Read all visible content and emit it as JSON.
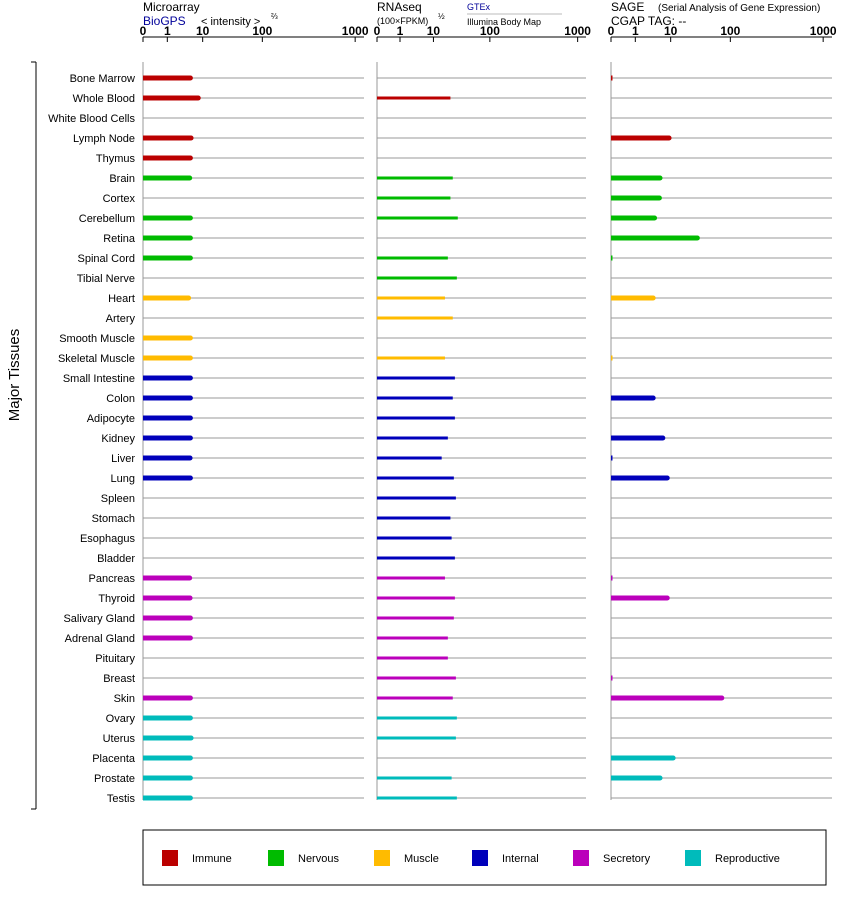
{
  "chart_data": {
    "type": "bar",
    "y_axis_label": "Major Tissues",
    "tissues": [
      "Bone Marrow",
      "Whole Blood",
      "White Blood Cells",
      "Lymph Node",
      "Thymus",
      "Brain",
      "Cortex",
      "Cerebellum",
      "Retina",
      "Spinal Cord",
      "Tibial Nerve",
      "Heart",
      "Artery",
      "Smooth Muscle",
      "Skeletal Muscle",
      "Small Intestine",
      "Colon",
      "Adipocyte",
      "Kidney",
      "Liver",
      "Lung",
      "Spleen",
      "Stomach",
      "Esophagus",
      "Bladder",
      "Pancreas",
      "Thyroid",
      "Salivary Gland",
      "Adrenal Gland",
      "Pituitary",
      "Breast",
      "Skin",
      "Ovary",
      "Uterus",
      "Placenta",
      "Prostate",
      "Testis"
    ],
    "tissue_groups": [
      "Immune",
      "Immune",
      "Immune",
      "Immune",
      "Immune",
      "Nervous",
      "Nervous",
      "Nervous",
      "Nervous",
      "Nervous",
      "Nervous",
      "Muscle",
      "Muscle",
      "Muscle",
      "Muscle",
      "Internal",
      "Internal",
      "Internal",
      "Internal",
      "Internal",
      "Internal",
      "Internal",
      "Internal",
      "Internal",
      "Internal",
      "Secretory",
      "Secretory",
      "Secretory",
      "Secretory",
      "Secretory",
      "Secretory",
      "Secretory",
      "Reproductive",
      "Reproductive",
      "Reproductive",
      "Reproductive",
      "Reproductive"
    ],
    "groups": [
      {
        "name": "Immune",
        "color": "#bb0000"
      },
      {
        "name": "Nervous",
        "color": "#00bb00"
      },
      {
        "name": "Muscle",
        "color": "#ffbb00"
      },
      {
        "name": "Internal",
        "color": "#0000bb"
      },
      {
        "name": "Secretory",
        "color": "#bb00bb"
      },
      {
        "name": "Reproductive",
        "color": "#00bbbb"
      }
    ],
    "axis_ticks": [
      "0",
      "1",
      "10",
      "100",
      "1000"
    ],
    "axis_tick_values": [
      0,
      1,
      10,
      100,
      1000
    ],
    "axis_max": 1000,
    "panels": [
      {
        "id": "microarray",
        "title": "Microarray",
        "subtitle_link": "BioGPS",
        "subtitle_text": "< intensity >",
        "exponent": "⅔",
        "values": [
          4.5,
          7.5,
          null,
          4.7,
          4.5,
          4.3,
          null,
          4.5,
          4.5,
          4.5,
          null,
          4.0,
          null,
          4.5,
          4.5,
          4.5,
          4.5,
          4.5,
          4.5,
          4.4,
          4.5,
          null,
          null,
          null,
          null,
          4.3,
          4.4,
          4.5,
          4.5,
          null,
          null,
          4.5,
          4.5,
          4.7,
          4.5,
          4.5,
          4.5
        ],
        "show_markers": false
      },
      {
        "id": "rnaseq",
        "title": "RNAseq",
        "subtitle_text": "(100×FPKM)",
        "exponent": "½",
        "source_link": "GTEx",
        "source_text": "Illumina Body Map",
        "values": [
          null,
          20,
          null,
          null,
          null,
          22,
          20,
          27,
          null,
          18,
          26,
          16,
          22,
          null,
          16,
          24,
          22,
          24,
          18,
          14,
          23,
          25,
          20,
          21,
          24,
          16,
          24,
          23,
          18,
          18,
          25,
          22,
          26,
          25,
          null,
          21,
          26
        ],
        "show_markers": false
      },
      {
        "id": "sage",
        "title": "SAGE",
        "title_note": "(Serial Analysis of Gene Expression)",
        "subtitle_text": "CGAP TAG:  --",
        "values": [
          0.05,
          null,
          null,
          9,
          null,
          5,
          4.8,
          3.5,
          28,
          0.05,
          null,
          3.2,
          null,
          null,
          0.05,
          null,
          3.2,
          null,
          6,
          0.05,
          8,
          null,
          null,
          null,
          null,
          0.05,
          8,
          null,
          null,
          null,
          0.05,
          72,
          null,
          null,
          11,
          5,
          null
        ],
        "show_markers": true
      }
    ]
  }
}
